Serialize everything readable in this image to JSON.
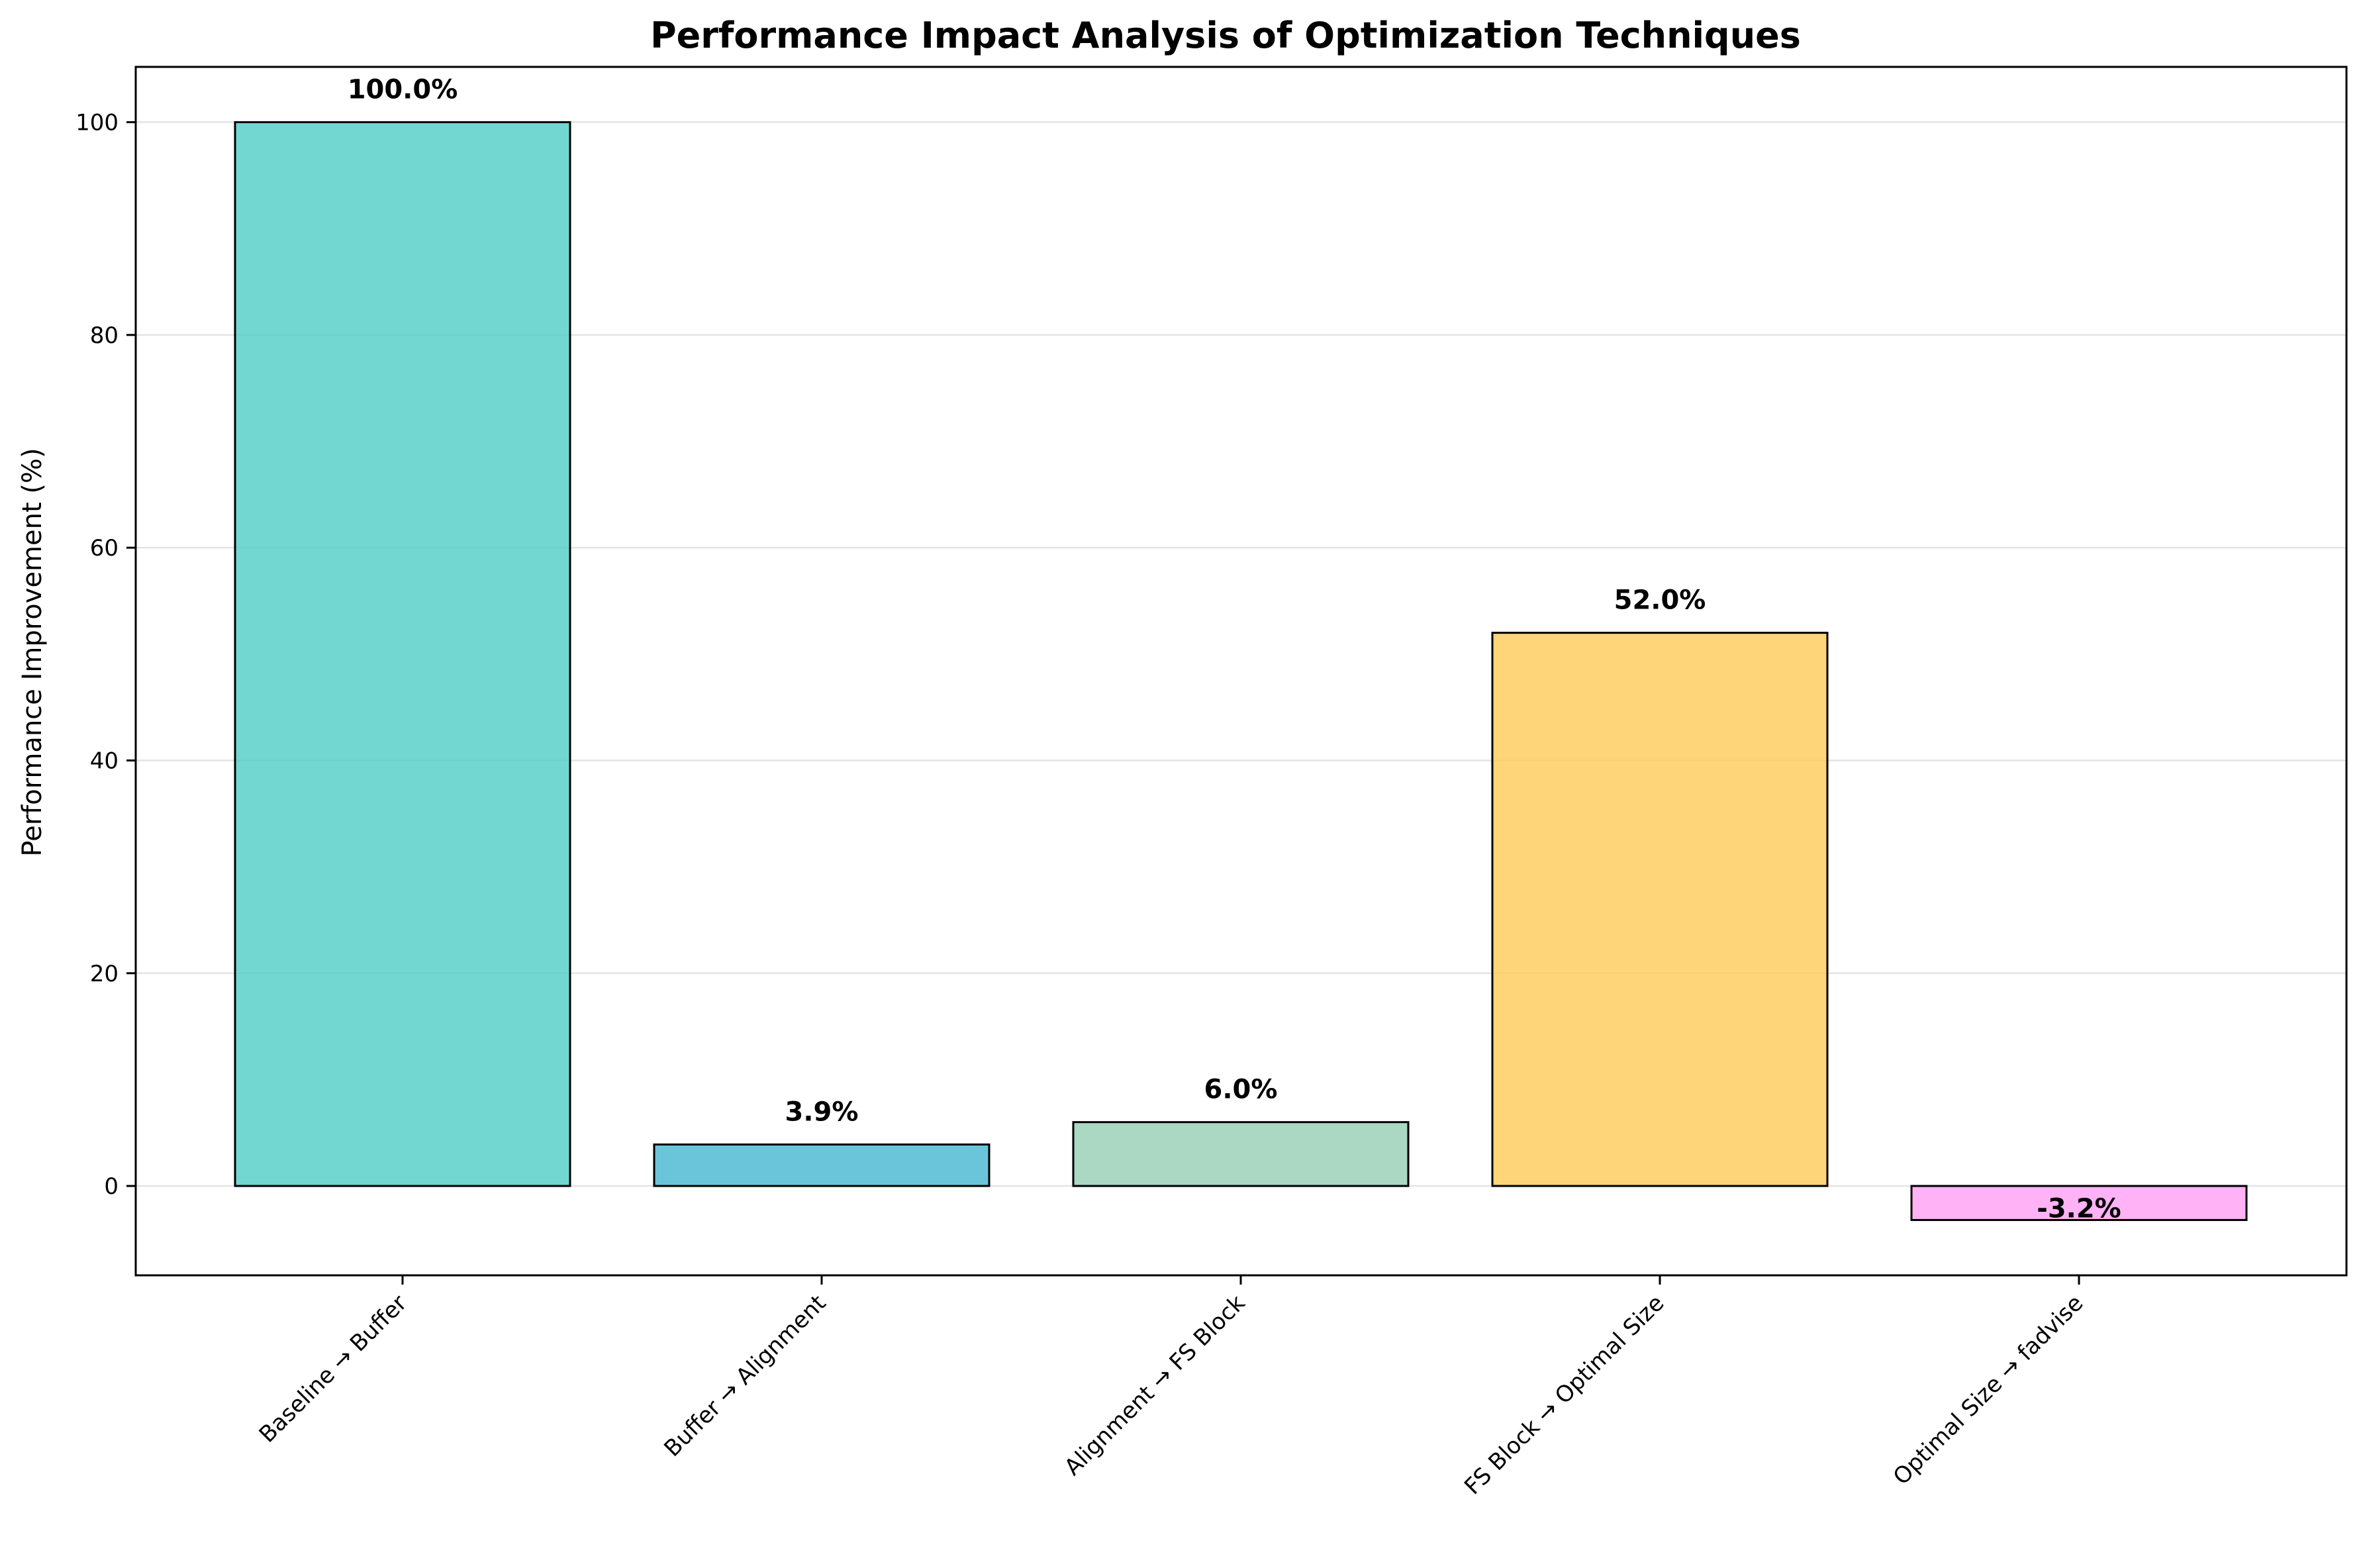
{
  "chart_data": {
    "type": "bar",
    "title": "Performance Impact Analysis of Optimization Techniques",
    "xlabel": "",
    "ylabel": "Performance Improvement (%)",
    "categories": [
      "Baseline → Buffer",
      "Buffer → Alignment",
      "Alignment → FS Block",
      "FS Block → Optimal Size",
      "Optimal Size → fadvise"
    ],
    "values": [
      100.0,
      3.9,
      6.0,
      52.0,
      -3.2
    ],
    "data_labels": [
      "100.0%",
      "3.9%",
      "6.0%",
      "52.0%",
      "-3.2%"
    ],
    "colors": [
      "#4ecdc4",
      "#45b7d1",
      "#96ceb4",
      "#feca57",
      "#ff9ff3"
    ],
    "edge_color": "#000000",
    "ylim": [
      -8.4,
      105.2
    ],
    "yticks": [
      0,
      20,
      40,
      60,
      80,
      100
    ],
    "grid": "y",
    "legend": "none"
  }
}
